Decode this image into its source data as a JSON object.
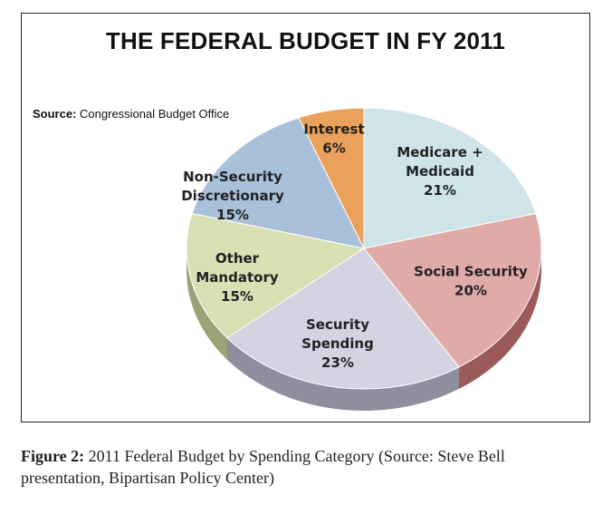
{
  "chart_data": {
    "type": "pie",
    "title": "THE FEDERAL BUDGET IN FY 2011",
    "source_label": "Source:",
    "source_text": "Congressional Budget Office",
    "slices": [
      {
        "name": "Medicare + Medicaid",
        "label_lines": [
          "Medicare +",
          "Medicaid",
          "21%"
        ],
        "value": 21,
        "color": "#cfe4e8",
        "side_color": "#9fb8bd"
      },
      {
        "name": "Social Security",
        "label_lines": [
          "Social Security",
          "20%"
        ],
        "value": 20,
        "color": "#e0aaa8",
        "side_color": "#9a5a58"
      },
      {
        "name": "Security Spending",
        "label_lines": [
          "Security",
          "Spending",
          "23%"
        ],
        "value": 23,
        "color": "#d4d3e2",
        "side_color": "#8f8e9e"
      },
      {
        "name": "Other Mandatory",
        "label_lines": [
          "Other",
          "Mandatory",
          "15%"
        ],
        "value": 15,
        "color": "#d8e0b4",
        "side_color": "#9aa276"
      },
      {
        "name": "Non-Security Discretionary",
        "label_lines": [
          "Non-Security",
          "Discretionary",
          "15%"
        ],
        "value": 15,
        "color": "#a9c0da",
        "side_color": "#6f86a0"
      },
      {
        "name": "Interest",
        "label_lines": [
          "Interest",
          "6%"
        ],
        "value": 6,
        "color": "#e9a15c",
        "side_color": "#a86a30"
      }
    ]
  },
  "caption": {
    "label": "Figure 2:",
    "text": "2011 Federal Budget by Spending Category (Source: Steve Bell presentation, Bipartisan Policy Center)"
  }
}
